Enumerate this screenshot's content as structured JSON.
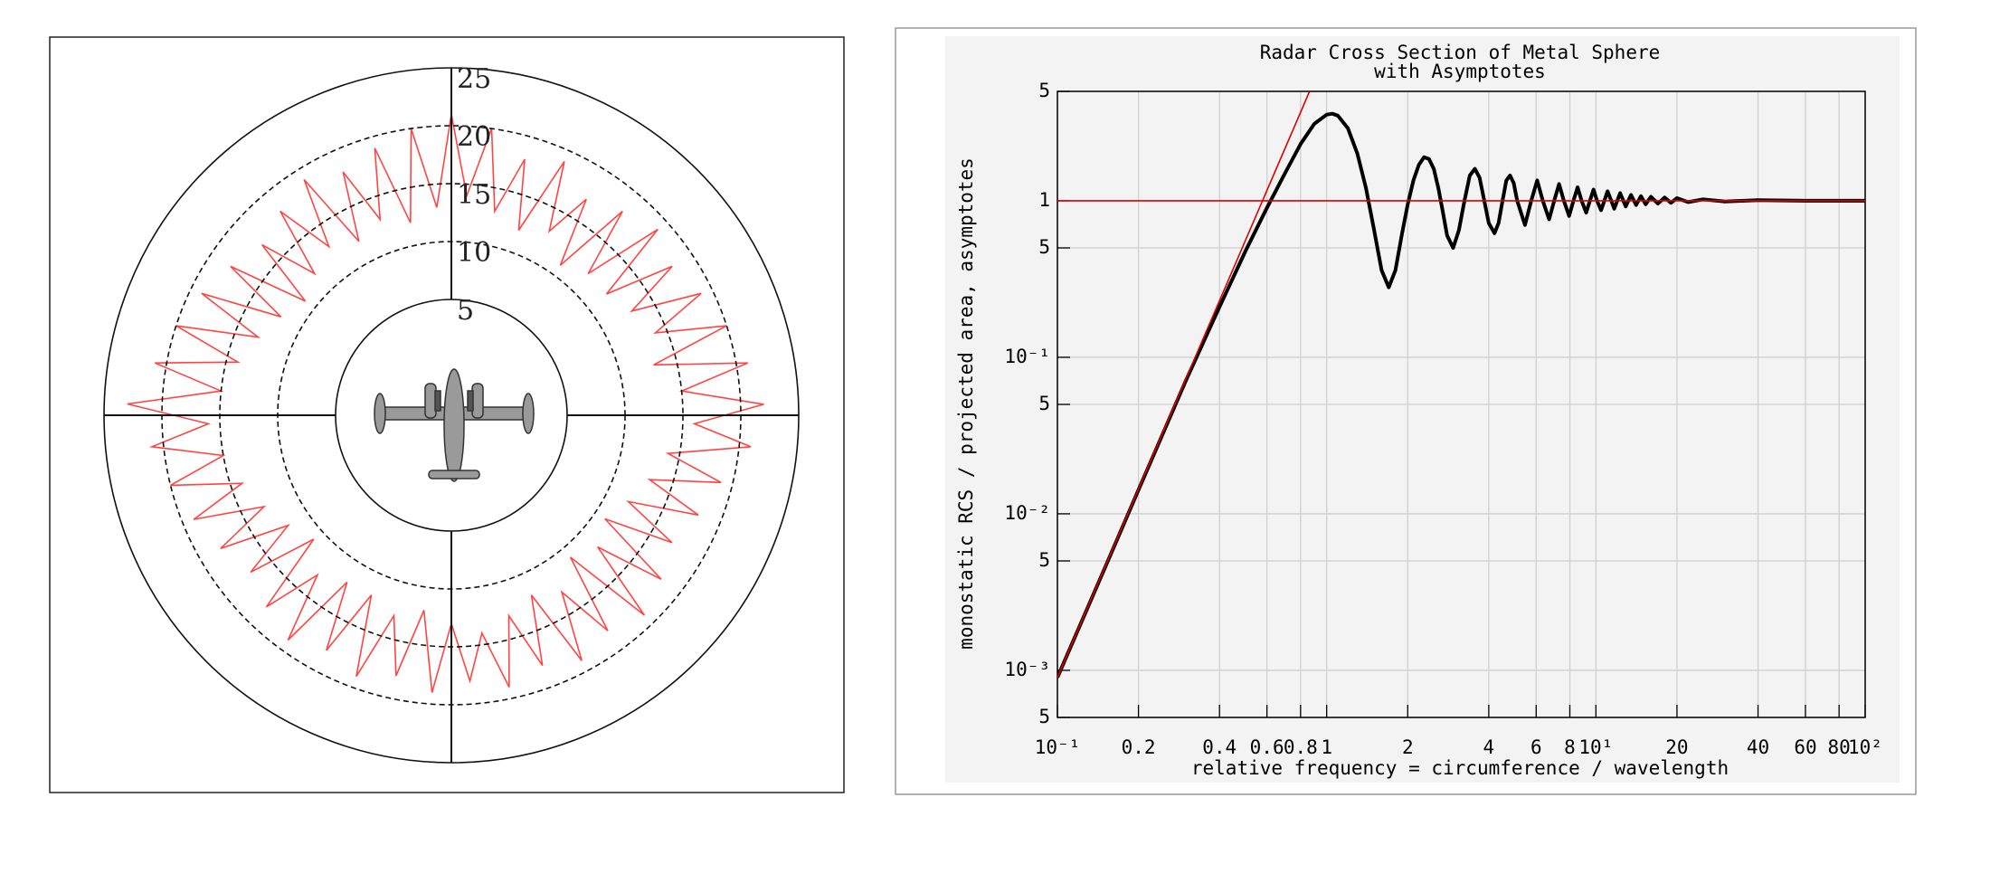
{
  "chart_data": [
    {
      "type": "polar",
      "theta": [
        0,
        4,
        8,
        12,
        16,
        20,
        24,
        28,
        32,
        36,
        40,
        44,
        48,
        52,
        56,
        60,
        64,
        68,
        72,
        76,
        80,
        84,
        88,
        92,
        96,
        100,
        104,
        108,
        112,
        116,
        120,
        124,
        128,
        132,
        136,
        140,
        144,
        148,
        152,
        156,
        160,
        164,
        168,
        172,
        176,
        180,
        184,
        188,
        192,
        196,
        200,
        204,
        208,
        212,
        216,
        220,
        224,
        228,
        232,
        236,
        240,
        244,
        248,
        252,
        256,
        260,
        264,
        268,
        272,
        276,
        280,
        284,
        288,
        292,
        296,
        300,
        304,
        308,
        312,
        316,
        320,
        324,
        328,
        332,
        336,
        340,
        344,
        348,
        352,
        356
      ],
      "values": [
        21,
        14,
        20,
        13,
        18,
        12,
        19,
        13,
        17,
        11,
        18,
        12,
        19,
        12,
        18,
        13,
        19,
        14,
        20,
        13,
        21,
        15,
        22,
        16,
        21,
        14,
        19,
        13,
        18,
        12,
        17,
        11,
        18,
        12,
        19,
        11,
        18,
        13,
        19,
        12,
        18,
        13,
        19,
        14,
        18,
        13,
        19,
        12,
        18,
        13,
        19,
        12,
        18,
        12,
        19,
        13,
        18,
        11,
        17,
        12,
        18,
        13,
        19,
        14,
        20,
        15,
        21,
        16,
        23,
        15,
        21,
        14,
        20,
        13,
        19,
        12,
        18,
        11,
        17,
        12,
        18,
        13,
        19,
        12,
        18,
        13,
        19,
        12,
        20,
        13
      ],
      "color": "#ff4444",
      "rlim": [
        -5,
        25
      ],
      "rticks": [
        5,
        10,
        15,
        20,
        25
      ]
    },
    {
      "type": "line",
      "title": "Radar Cross Section of Metal Sphere",
      "subtitle": "with Asymptotes",
      "x_label": "relative frequency = circumference / wavelength",
      "y_label": "monostatic RCS / projected area, asymptotes",
      "log_x": true,
      "log_y": true,
      "grid": true,
      "xlim": [
        0.1,
        100
      ],
      "ylim": [
        0.0005,
        5
      ],
      "xticks": [
        {
          "value": 0.1,
          "label": "10⁻¹"
        },
        0.2,
        0.4,
        0.6,
        0.8,
        1,
        2,
        4,
        6,
        8,
        {
          "value": 10,
          "label": "10¹"
        },
        20,
        40,
        60,
        80,
        {
          "value": 100,
          "label": "10²"
        }
      ],
      "yticks": [
        {
          "value": 0.0005,
          "label": "5"
        },
        {
          "value": 0.001,
          "label": "10⁻³"
        },
        {
          "value": 0.005,
          "label": "5"
        },
        {
          "value": 0.01,
          "label": "10⁻²"
        },
        {
          "value": 0.05,
          "label": "5"
        },
        {
          "value": 0.1,
          "label": "10⁻¹"
        },
        {
          "value": 0.5,
          "label": "5"
        },
        1,
        5
      ],
      "series": [
        {
          "color": "#000000",
          "x": [
            0.1,
            0.15,
            0.2,
            0.3,
            0.4,
            0.5,
            0.6,
            0.7,
            0.8,
            0.9,
            1.0,
            1.05,
            1.1,
            1.2,
            1.3,
            1.4,
            1.5,
            1.6,
            1.7,
            1.8,
            1.9,
            2.0,
            2.1,
            2.2,
            2.3,
            2.4,
            2.5,
            2.6,
            2.7,
            2.8,
            2.95,
            3.1,
            3.25,
            3.4,
            3.55,
            3.7,
            3.85,
            4.0,
            4.2,
            4.35,
            4.5,
            4.65,
            4.8,
            4.95,
            5.1,
            5.45,
            5.75,
            6.05,
            6.35,
            6.7,
            7.0,
            7.3,
            7.6,
            7.95,
            8.25,
            8.55,
            8.85,
            9.2,
            9.5,
            9.8,
            10.1,
            10.45,
            10.75,
            11.05,
            11.4,
            11.7,
            12.3,
            12.9,
            13.5,
            14.1,
            14.7,
            15.3,
            16,
            17,
            18,
            19,
            20,
            22,
            25,
            30,
            40,
            60,
            100
          ],
          "values": [
            0.0009,
            0.0045,
            0.0142,
            0.071,
            0.21,
            0.48,
            0.9,
            1.5,
            2.3,
            3.1,
            3.55,
            3.6,
            3.5,
            2.9,
            2.0,
            1.2,
            0.65,
            0.36,
            0.28,
            0.36,
            0.6,
            0.95,
            1.35,
            1.7,
            1.9,
            1.85,
            1.6,
            1.2,
            0.85,
            0.6,
            0.5,
            0.65,
            1.0,
            1.45,
            1.6,
            1.4,
            1.0,
            0.72,
            0.62,
            0.72,
            1.0,
            1.35,
            1.45,
            1.3,
            1.0,
            0.7,
            1.0,
            1.35,
            1.0,
            0.76,
            1.0,
            1.28,
            1.0,
            0.8,
            1.0,
            1.22,
            1.0,
            0.84,
            1.0,
            1.18,
            1.0,
            0.87,
            1.0,
            1.15,
            1.0,
            0.89,
            1.12,
            0.92,
            1.09,
            0.94,
            1.07,
            0.95,
            1.06,
            0.96,
            1.05,
            0.97,
            1.04,
            0.98,
            1.02,
            0.99,
            1.01,
            1.0,
            1.0
          ]
        },
        {
          "color": "#e00000",
          "x": [
            0.1,
            0.862
          ],
          "values": [
            0.0009,
            4.96
          ]
        },
        {
          "color": "#e00000",
          "x": [
            0.1,
            100
          ],
          "values": [
            1,
            1
          ]
        }
      ]
    }
  ]
}
